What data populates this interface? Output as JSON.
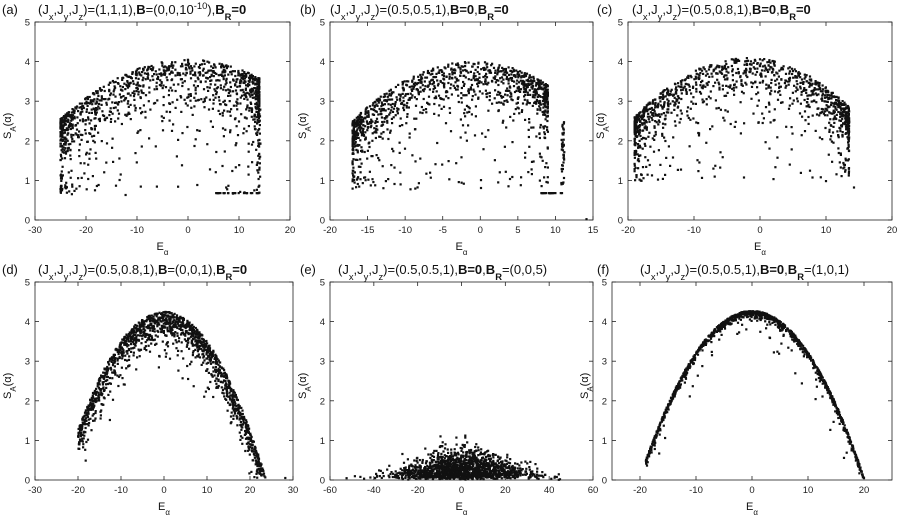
{
  "figure": {
    "x_label": "E",
    "x_label_sub": "α",
    "y_label": "S",
    "y_label_sub": "A",
    "y_label_arg": "(α)"
  },
  "chart_data": [
    {
      "type": "scatter",
      "panel": "(a)",
      "title_segments": [
        {
          "text": "(J",
          "bold": false
        },
        {
          "text": "x",
          "sub": true
        },
        {
          "text": ",J",
          "bold": false
        },
        {
          "text": "y",
          "sub": true
        },
        {
          "text": ",J",
          "bold": false
        },
        {
          "text": "z",
          "sub": true
        },
        {
          "text": ")=(1,1,1),",
          "bold": false
        },
        {
          "text": "B",
          "bold": true
        },
        {
          "text": "=(0,0,10",
          "bold": false
        },
        {
          "text": "-10",
          "sup": true
        },
        {
          "text": "),",
          "bold": false
        },
        {
          "text": "B",
          "bold": true
        },
        {
          "text": "R",
          "sub": true,
          "bold": true
        },
        {
          "text": "=0",
          "bold": true
        }
      ],
      "xlim": [
        -30,
        20
      ],
      "ylim": [
        0,
        5
      ],
      "xticks": [
        -30,
        -20,
        -10,
        0,
        10,
        20
      ],
      "yticks": [
        0,
        1,
        2,
        3,
        4,
        5
      ],
      "color": "#111111",
      "shape": {
        "kind": "dome",
        "emin": -25,
        "emax": 14,
        "peak_e": 0,
        "peak_s": 4.05,
        "band": 1.3,
        "n": 1200,
        "sparse_floor": 0.9
      },
      "features": [
        {
          "x_range": [
            5,
            14
          ],
          "y": 0.68,
          "n": 25
        },
        {
          "x_range": [
            13.5,
            14.2
          ],
          "y_range": [
            1.0,
            3.0
          ],
          "n": 30
        }
      ]
    },
    {
      "type": "scatter",
      "panel": "(b)",
      "title_segments": [
        {
          "text": "(J",
          "bold": false
        },
        {
          "text": "x",
          "sub": true
        },
        {
          "text": ",J",
          "bold": false
        },
        {
          "text": "y",
          "sub": true
        },
        {
          "text": ",J",
          "bold": false
        },
        {
          "text": "z",
          "sub": true
        },
        {
          "text": ")=(0.5,0.5,1),",
          "bold": false
        },
        {
          "text": "B",
          "bold": true
        },
        {
          "text": "=0",
          "bold": true
        },
        {
          "text": ",",
          "bold": false
        },
        {
          "text": "B",
          "bold": true
        },
        {
          "text": "R",
          "sub": true,
          "bold": true
        },
        {
          "text": "=0",
          "bold": true
        }
      ],
      "xlim": [
        -20,
        15
      ],
      "ylim": [
        0,
        5
      ],
      "xticks": [
        -20,
        -15,
        -10,
        -5,
        0,
        5,
        10,
        15
      ],
      "yticks": [
        0,
        1,
        2,
        3,
        4,
        5
      ],
      "color": "#111111",
      "shape": {
        "kind": "dome",
        "emin": -17,
        "emax": 9,
        "peak_e": -1,
        "peak_s": 4.0,
        "band": 1.2,
        "n": 1200,
        "sparse_floor": 1.1
      },
      "features": [
        {
          "x_range": [
            8,
            11
          ],
          "y": 0.68,
          "n": 20
        },
        {
          "x_range": [
            10.8,
            11.2
          ],
          "y_range": [
            0.8,
            2.5
          ],
          "n": 40
        },
        {
          "x_range": [
            14,
            14.3
          ],
          "y": 0.02,
          "n": 1
        }
      ]
    },
    {
      "type": "scatter",
      "panel": "(c)",
      "title_segments": [
        {
          "text": "(J",
          "bold": false
        },
        {
          "text": "x",
          "sub": true
        },
        {
          "text": ",J",
          "bold": false
        },
        {
          "text": "y",
          "sub": true
        },
        {
          "text": ",J",
          "bold": false
        },
        {
          "text": "z",
          "sub": true
        },
        {
          "text": ")=(0.5,0.8,1),",
          "bold": false
        },
        {
          "text": "B",
          "bold": true
        },
        {
          "text": "=0",
          "bold": true
        },
        {
          "text": ",",
          "bold": false
        },
        {
          "text": "B",
          "bold": true
        },
        {
          "text": "R",
          "sub": true,
          "bold": true
        },
        {
          "text": "=0",
          "bold": true
        }
      ],
      "xlim": [
        -20,
        20
      ],
      "ylim": [
        0,
        5
      ],
      "xticks": [
        -20,
        -10,
        0,
        10,
        20
      ],
      "yticks": [
        0,
        1,
        2,
        3,
        4,
        5
      ],
      "color": "#111111",
      "shape": {
        "kind": "dome",
        "emin": -19,
        "emax": 13.5,
        "peak_e": -2,
        "peak_s": 4.1,
        "band": 1.1,
        "n": 1200,
        "sparse_floor": 1.4
      },
      "features": [
        {
          "x_range": [
            14.2,
            14.4
          ],
          "y": 0.82,
          "n": 1
        }
      ]
    },
    {
      "type": "scatter",
      "panel": "(d)",
      "title_segments": [
        {
          "text": "(J",
          "bold": false
        },
        {
          "text": "x",
          "sub": true
        },
        {
          "text": ",J",
          "bold": false
        },
        {
          "text": "y",
          "sub": true
        },
        {
          "text": ",J",
          "bold": false
        },
        {
          "text": "z",
          "sub": true
        },
        {
          "text": ")=(0.5,0.8,1),",
          "bold": false
        },
        {
          "text": "B",
          "bold": true
        },
        {
          "text": "=(0,0,1),",
          "bold": false
        },
        {
          "text": "B",
          "bold": true
        },
        {
          "text": "R",
          "sub": true,
          "bold": true
        },
        {
          "text": "=0",
          "bold": true
        }
      ],
      "xlim": [
        -30,
        30
      ],
      "ylim": [
        0,
        5
      ],
      "xticks": [
        -30,
        -20,
        -10,
        0,
        10,
        20,
        30
      ],
      "yticks": [
        0,
        1,
        2,
        3,
        4,
        5
      ],
      "color": "#111111",
      "shape": {
        "kind": "parabola",
        "emin": -20,
        "emax": 25,
        "peak_e": 0,
        "peak_s": 4.25,
        "curv": 0.0075,
        "band": 0.55,
        "n": 1500
      },
      "features": [
        {
          "x_range": [
            28,
            28.3
          ],
          "y": 0.05,
          "n": 1
        }
      ]
    },
    {
      "type": "scatter",
      "panel": "(e)",
      "title_segments": [
        {
          "text": "(J",
          "bold": false
        },
        {
          "text": "x",
          "sub": true
        },
        {
          "text": ",J",
          "bold": false
        },
        {
          "text": "y",
          "sub": true
        },
        {
          "text": ",J",
          "bold": false
        },
        {
          "text": "z",
          "sub": true
        },
        {
          "text": ")=(0.5,0.5,1),",
          "bold": false
        },
        {
          "text": "B",
          "bold": true
        },
        {
          "text": "=0",
          "bold": true
        },
        {
          "text": ",",
          "bold": false
        },
        {
          "text": "B",
          "bold": true
        },
        {
          "text": "R",
          "sub": true,
          "bold": true
        },
        {
          "text": "=(0,0,5)",
          "bold": false
        }
      ],
      "xlim": [
        -60,
        60
      ],
      "ylim": [
        0,
        5
      ],
      "xticks": [
        -60,
        -40,
        -20,
        0,
        20,
        40,
        60
      ],
      "yticks": [
        0,
        1,
        2,
        3,
        4,
        5
      ],
      "color": "#111111",
      "shape": {
        "kind": "flat",
        "emin": -55,
        "emax": 45,
        "peak_s": 1.45,
        "n": 1500
      }
    },
    {
      "type": "scatter",
      "panel": "(f)",
      "title_segments": [
        {
          "text": "(J",
          "bold": false
        },
        {
          "text": "x",
          "sub": true
        },
        {
          "text": ",J",
          "bold": false
        },
        {
          "text": "y",
          "sub": true
        },
        {
          "text": ",J",
          "bold": false
        },
        {
          "text": "z",
          "sub": true
        },
        {
          "text": ")=(0.5,0.5,1),",
          "bold": false
        },
        {
          "text": "B",
          "bold": true
        },
        {
          "text": "=0",
          "bold": true
        },
        {
          "text": ",",
          "bold": false
        },
        {
          "text": "B",
          "bold": true
        },
        {
          "text": "R",
          "sub": true,
          "bold": true
        },
        {
          "text": "=(1,0,1)",
          "bold": false
        }
      ],
      "xlim": [
        -25,
        25
      ],
      "ylim": [
        0,
        5
      ],
      "xticks": [
        -20,
        -10,
        0,
        10,
        20
      ],
      "yticks": [
        0,
        1,
        2,
        3,
        4,
        5
      ],
      "color": "#111111",
      "shape": {
        "kind": "parabola",
        "emin": -19,
        "emax": 20,
        "peak_e": 0,
        "peak_s": 4.27,
        "curv": 0.0105,
        "band": 0.12,
        "n": 1200
      }
    }
  ]
}
